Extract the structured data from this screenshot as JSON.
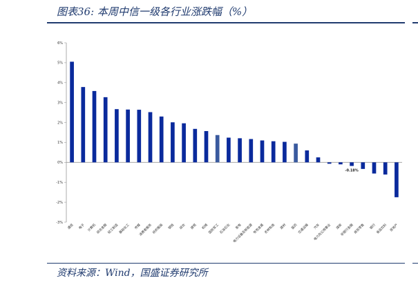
{
  "figure": {
    "title": "图表36:  本周中信一级各行业涨跌幅（%）",
    "source": "资料来源：Wind，国盛证券研究所"
  },
  "colors": {
    "bar": "#0a2a9c",
    "highlight": "#3a5a9e",
    "axis": "#999999",
    "rule": "#1f3a6e"
  },
  "chart_data": {
    "type": "bar",
    "title": "",
    "xlabel": "",
    "ylabel": "",
    "ylim": [
      -3,
      6
    ],
    "yticks": [
      6,
      5,
      4,
      3,
      2,
      1,
      0,
      -1,
      -2,
      -3
    ],
    "ytick_labels": [
      "6%",
      "5%",
      "4%",
      "3%",
      "2%",
      "1%",
      "0%",
      "-1%",
      "-2%",
      "-3%"
    ],
    "grid": false,
    "categories": [
      "通信",
      "电子",
      "计算机",
      "综合金融",
      "轻工制造",
      "基础化工",
      "传媒",
      "消费者服务",
      "纺织服装",
      "钢铁",
      "综合",
      "建筑",
      "机械",
      "国防军工",
      "石油石化",
      "家电",
      "电力设备及新能源",
      "有色金属",
      "农林牧渔",
      "建材",
      "医药",
      "交通运输",
      "汽车",
      "电力及公用事业",
      "煤炭",
      "非银行金融",
      "商贸零售",
      "银行",
      "食品饮料",
      "房地产"
    ],
    "values": [
      5.05,
      3.78,
      3.58,
      3.27,
      2.67,
      2.65,
      2.64,
      2.52,
      2.3,
      2.01,
      1.96,
      1.68,
      1.57,
      1.37,
      1.24,
      1.21,
      1.17,
      1.1,
      1.06,
      1.03,
      0.94,
      0.6,
      0.25,
      -0.07,
      -0.1,
      -0.18,
      -0.33,
      -0.56,
      -0.61,
      -1.75
    ],
    "highlight_indices": [
      13,
      20
    ],
    "data_labels": [
      {
        "index": 25,
        "text": "-0.18%"
      }
    ]
  }
}
